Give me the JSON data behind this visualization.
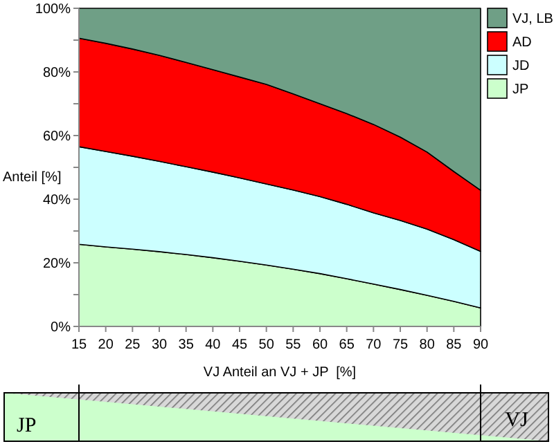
{
  "chart_data": {
    "type": "area",
    "stacked": true,
    "xlabel": "VJ Anteil an VJ + JP  [%]",
    "ylabel": "Anteil [%]",
    "x": [
      15,
      20,
      25,
      30,
      35,
      40,
      45,
      50,
      55,
      60,
      65,
      70,
      75,
      80,
      85,
      90
    ],
    "xlim": [
      15,
      90
    ],
    "xticks": [
      15,
      20,
      25,
      30,
      35,
      40,
      45,
      50,
      55,
      60,
      65,
      70,
      75,
      80,
      85,
      90
    ],
    "ylim": [
      0,
      100
    ],
    "yticks": [
      {
        "value": 0,
        "label": "0%"
      },
      {
        "value": 10,
        "label": null
      },
      {
        "value": 20,
        "label": "20%"
      },
      {
        "value": 30,
        "label": null
      },
      {
        "value": 40,
        "label": "40%"
      },
      {
        "value": 50,
        "label": null
      },
      {
        "value": 60,
        "label": "60%"
      },
      {
        "value": 70,
        "label": null
      },
      {
        "value": 80,
        "label": "80%"
      },
      {
        "value": 90,
        "label": null
      },
      {
        "value": 100,
        "label": "100%"
      }
    ],
    "legend": "right",
    "grid": false,
    "series": [
      {
        "name": "JP",
        "color": "#ccffcc",
        "values": [
          25.8,
          25.0,
          24.3,
          23.5,
          22.6,
          21.6,
          20.5,
          19.3,
          18.0,
          16.6,
          15.0,
          13.3,
          11.6,
          9.8,
          7.9,
          5.8
        ]
      },
      {
        "name": "JD",
        "color": "#ccffff",
        "values": [
          30.7,
          30.0,
          29.2,
          28.4,
          27.6,
          26.9,
          26.2,
          25.5,
          24.9,
          24.2,
          23.4,
          22.4,
          21.7,
          20.8,
          19.4,
          17.8
        ]
      },
      {
        "name": "AD",
        "color": "#ff0000",
        "values": [
          34.1,
          34.0,
          33.7,
          33.3,
          32.8,
          32.2,
          31.7,
          31.3,
          30.2,
          29.2,
          28.5,
          27.8,
          26.2,
          24.2,
          21.4,
          19.2
        ]
      },
      {
        "name": "VJ, LB",
        "color": "#6f9f86",
        "values": [
          9.4,
          11.0,
          12.8,
          14.8,
          17.0,
          19.3,
          21.6,
          23.9,
          26.9,
          30.0,
          33.1,
          36.5,
          40.5,
          45.2,
          51.3,
          57.2
        ]
      }
    ],
    "annotations": [
      "JP",
      "VJ"
    ]
  }
}
